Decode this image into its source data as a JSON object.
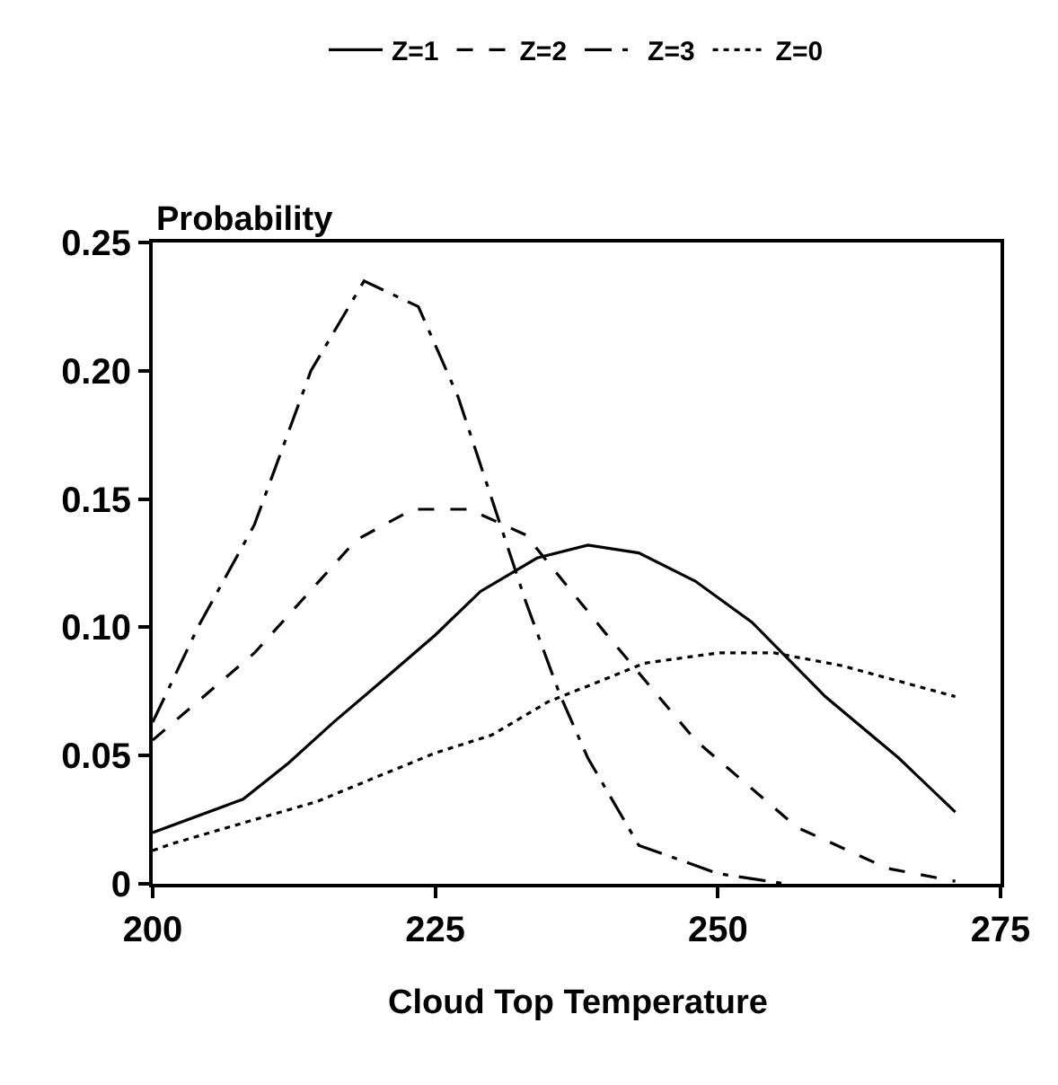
{
  "chart_data": {
    "type": "line",
    "xlabel": "Cloud Top Temperature",
    "ylabel": "Probability",
    "xlim": [
      200,
      275
    ],
    "ylim": [
      0,
      0.25
    ],
    "xticks": [
      200,
      225,
      250,
      275
    ],
    "yticks": [
      0,
      {
        "value": 0.05,
        "label": "0.05"
      },
      {
        "value": 0.1,
        "label": "0.10"
      },
      {
        "value": 0.15,
        "label": "0.15"
      },
      {
        "value": 0.2,
        "label": "0.20"
      },
      {
        "value": 0.25,
        "label": "0.25"
      }
    ],
    "legend": "top",
    "marker": "none",
    "series": [
      {
        "name": "Z=1",
        "color": "#000000",
        "line_style": "solid",
        "x": [
          200,
          208,
          212,
          216,
          220,
          225,
          229,
          234,
          238.5,
          243,
          248,
          253,
          259.5,
          266,
          271
        ],
        "values": [
          0.02,
          0.033,
          0.047,
          0.063,
          0.078,
          0.097,
          0.114,
          0.127,
          0.132,
          0.129,
          0.118,
          0.102,
          0.073,
          0.049,
          0.028
        ]
      },
      {
        "name": "Z=2",
        "color": "#000000",
        "line_style": "dashed",
        "x": [
          200,
          209,
          218,
          223,
          228,
          233,
          240,
          248,
          257,
          265,
          271
        ],
        "values": [
          0.056,
          0.09,
          0.134,
          0.146,
          0.146,
          0.136,
          0.098,
          0.056,
          0.022,
          0.006,
          0.001
        ]
      },
      {
        "name": "Z=3",
        "color": "#000000",
        "line_style": "dashdot",
        "x": [
          200,
          204,
          209,
          214,
          218.7,
          223.5,
          227,
          230,
          233,
          236,
          238.5,
          243,
          250,
          256
        ],
        "values": [
          0.063,
          0.1,
          0.14,
          0.2,
          0.235,
          0.225,
          0.19,
          0.15,
          0.11,
          0.074,
          0.049,
          0.015,
          0.004,
          0
        ]
      },
      {
        "name": "Z=0",
        "color": "#000000",
        "line_style": "dotted",
        "x": [
          200,
          202,
          209,
          214.5,
          220,
          225,
          230,
          235,
          239,
          243.5,
          250,
          255,
          261,
          266,
          271
        ],
        "values": [
          0.013,
          0.016,
          0.025,
          0.032,
          0.042,
          0.051,
          0.058,
          0.071,
          0.078,
          0.086,
          0.09,
          0.09,
          0.085,
          0.079,
          0.073
        ]
      }
    ]
  }
}
